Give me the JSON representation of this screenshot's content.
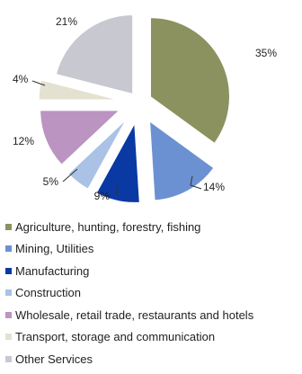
{
  "chart_data": {
    "type": "pie",
    "exploded": true,
    "start_angle_deg": 0,
    "direction": "clockwise",
    "legend_position": "bottom",
    "slices": [
      {
        "label": "Agriculture, hunting, forestry, fishing",
        "value": 35,
        "value_label": "35%",
        "color": "#8c9160"
      },
      {
        "label": "Mining, Utilities",
        "value": 14,
        "value_label": "14%",
        "color": "#6c91d2"
      },
      {
        "label": "Manufacturing",
        "value": 9,
        "value_label": "9%",
        "color": "#0a39a4"
      },
      {
        "label": "Construction",
        "value": 5,
        "value_label": "5%",
        "color": "#a9c2e6"
      },
      {
        "label": "Wholesale, retail trade, restaurants and hotels",
        "value": 12,
        "value_label": "12%",
        "color": "#bb94c2"
      },
      {
        "label": "Transport, storage and communication",
        "value": 4,
        "value_label": "4%",
        "color": "#e4e1d1"
      },
      {
        "label": "Other Services",
        "value": 21,
        "value_label": "21%",
        "color": "#c7c8d0"
      }
    ]
  }
}
